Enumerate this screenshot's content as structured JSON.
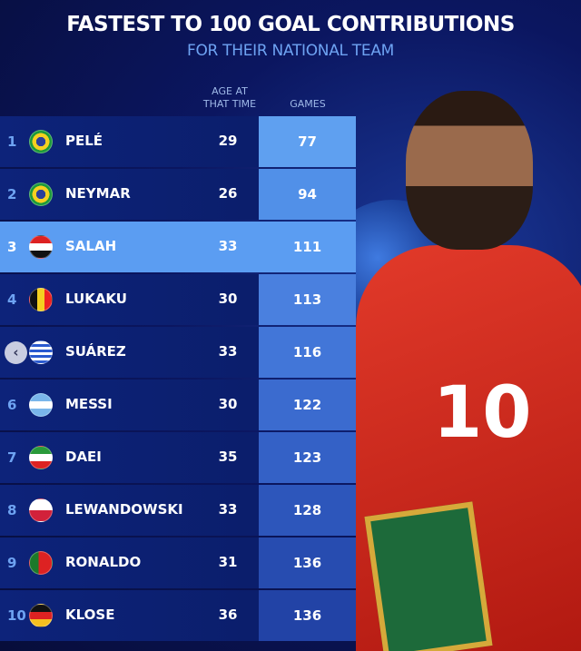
{
  "title": "FASTEST TO 100 GOAL CONTRIBUTIONS",
  "subtitle": "FOR THEIR NATIONAL TEAM",
  "columns": {
    "age": "AGE AT THAT TIME",
    "games": "GAMES"
  },
  "jersey_number": "10",
  "highlight_color": "#5b9df2",
  "rows": [
    {
      "rank": "1",
      "flag": "brazil",
      "name": "PELÉ",
      "age": "29",
      "games": "77",
      "games_color": "#5fa0f0"
    },
    {
      "rank": "2",
      "flag": "brazil",
      "name": "NEYMAR",
      "age": "26",
      "games": "94",
      "games_color": "#5190e8"
    },
    {
      "rank": "3",
      "flag": "egypt",
      "name": "SALAH",
      "age": "33",
      "games": "111",
      "games_color": "#5b9df2",
      "highlight": true
    },
    {
      "rank": "4",
      "flag": "belgium",
      "name": "LUKAKU",
      "age": "30",
      "games": "113",
      "games_color": "#4a80df"
    },
    {
      "rank": "",
      "flag": "uruguay",
      "name": "SUÁREZ",
      "age": "33",
      "games": "116",
      "games_color": "#4276d8",
      "back_button": true
    },
    {
      "rank": "6",
      "flag": "argentina",
      "name": "MESSI",
      "age": "30",
      "games": "122",
      "games_color": "#3b6bcf"
    },
    {
      "rank": "7",
      "flag": "iran",
      "name": "DAEI",
      "age": "35",
      "games": "123",
      "games_color": "#3461c6"
    },
    {
      "rank": "8",
      "flag": "poland",
      "name": "LEWANDOWSKI",
      "age": "33",
      "games": "128",
      "games_color": "#2d56bb"
    },
    {
      "rank": "9",
      "flag": "portugal",
      "name": "RONALDO",
      "age": "31",
      "games": "136",
      "games_color": "#274cb0"
    },
    {
      "rank": "10",
      "flag": "germany",
      "name": "KLOSE",
      "age": "36",
      "games": "136",
      "games_color": "#2243a6"
    }
  ]
}
